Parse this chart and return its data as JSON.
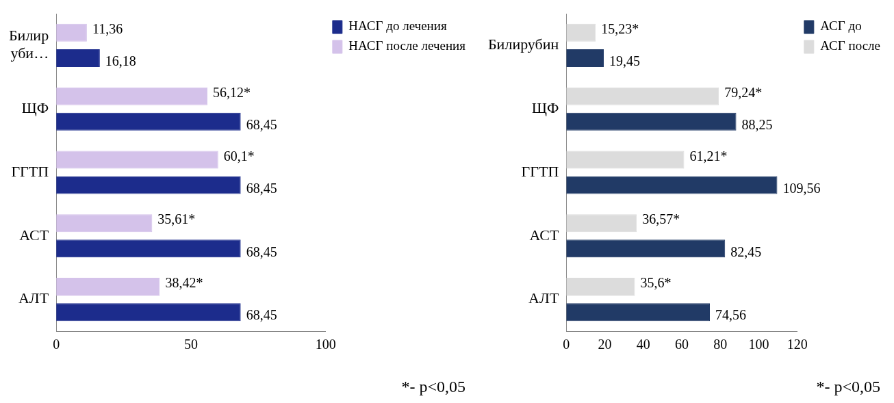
{
  "chart_data": [
    {
      "type": "bar",
      "orientation": "horizontal",
      "categories": [
        "Билир уби…",
        "ЩФ",
        "ГГТП",
        "АСТ",
        "АЛТ"
      ],
      "series": [
        {
          "name": "НАСГ после лечения",
          "color": "#d4c2ea",
          "values": [
            11.36,
            56.12,
            60.1,
            35.61,
            38.42
          ],
          "value_labels": [
            "11,36",
            "56,12*",
            "60,1*",
            "35,61*",
            "38,42*"
          ]
        },
        {
          "name": "НАСГ до лечения",
          "color": "#1c2c8c",
          "values": [
            16.18,
            68.45,
            68.45,
            68.45,
            68.45
          ],
          "value_labels": [
            "16,18",
            "68,45",
            "68,45",
            "68,45",
            "68,45"
          ]
        }
      ],
      "xlim": [
        0,
        100
      ],
      "xticks": [
        0,
        50,
        100
      ],
      "grid": false,
      "legend": "right",
      "annotations": [
        "*- p<0,05"
      ]
    },
    {
      "type": "bar",
      "orientation": "horizontal",
      "categories": [
        "Билирубин",
        "ЩФ",
        "ГГТП",
        "АСТ",
        "АЛТ"
      ],
      "series": [
        {
          "name": "АСГ после",
          "color": "#dcdcdc",
          "values": [
            15.23,
            79.24,
            61.21,
            36.57,
            35.6
          ],
          "value_labels": [
            "15,23*",
            "79,24*",
            "61,21*",
            "36,57*",
            "35,6*"
          ]
        },
        {
          "name": "АСГ до",
          "color": "#213a66",
          "values": [
            19.45,
            88.25,
            109.56,
            82.45,
            74.56
          ],
          "value_labels": [
            "19,45",
            "88,25",
            "109,56",
            "82,45",
            "74,56"
          ]
        }
      ],
      "xlim": [
        0,
        120
      ],
      "xticks": [
        0,
        20,
        40,
        60,
        80,
        100,
        120
      ],
      "grid": false,
      "legend": "top right",
      "annotations": [
        "*- p<0,05"
      ]
    }
  ]
}
